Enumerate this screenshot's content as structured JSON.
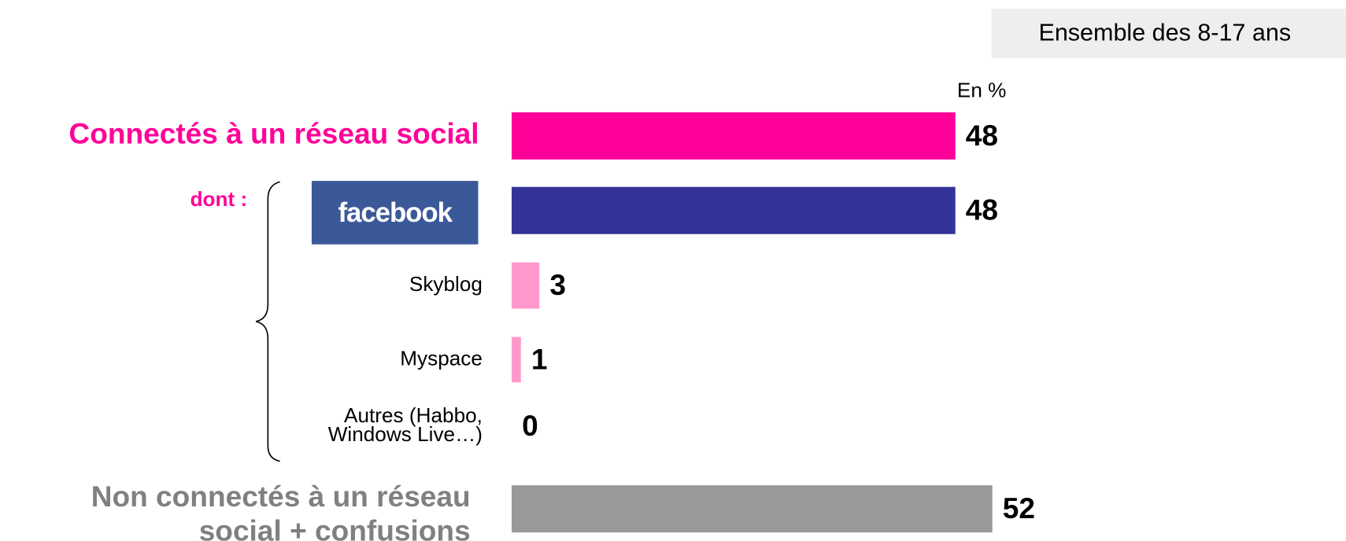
{
  "chart_data": {
    "type": "bar",
    "orientation": "horizontal",
    "subtitle": "Ensemble des 8-17 ans",
    "unit_label": "En %",
    "group_label": "dont :",
    "categories": [
      "Connectés à un réseau social",
      "facebook",
      "Skyblog",
      "Myspace",
      [
        "Autres (Habbo,",
        "Windows Live…)"
      ],
      [
        "Non connectés à un réseau",
        "social + confusions"
      ]
    ],
    "values": [
      48,
      48,
      3,
      1,
      0,
      52
    ],
    "colors": [
      "#ff0099",
      "#333399",
      "#ff99cc",
      "#ff99cc",
      "#ff99cc",
      "#999999"
    ],
    "xlim": [
      0,
      100
    ]
  }
}
